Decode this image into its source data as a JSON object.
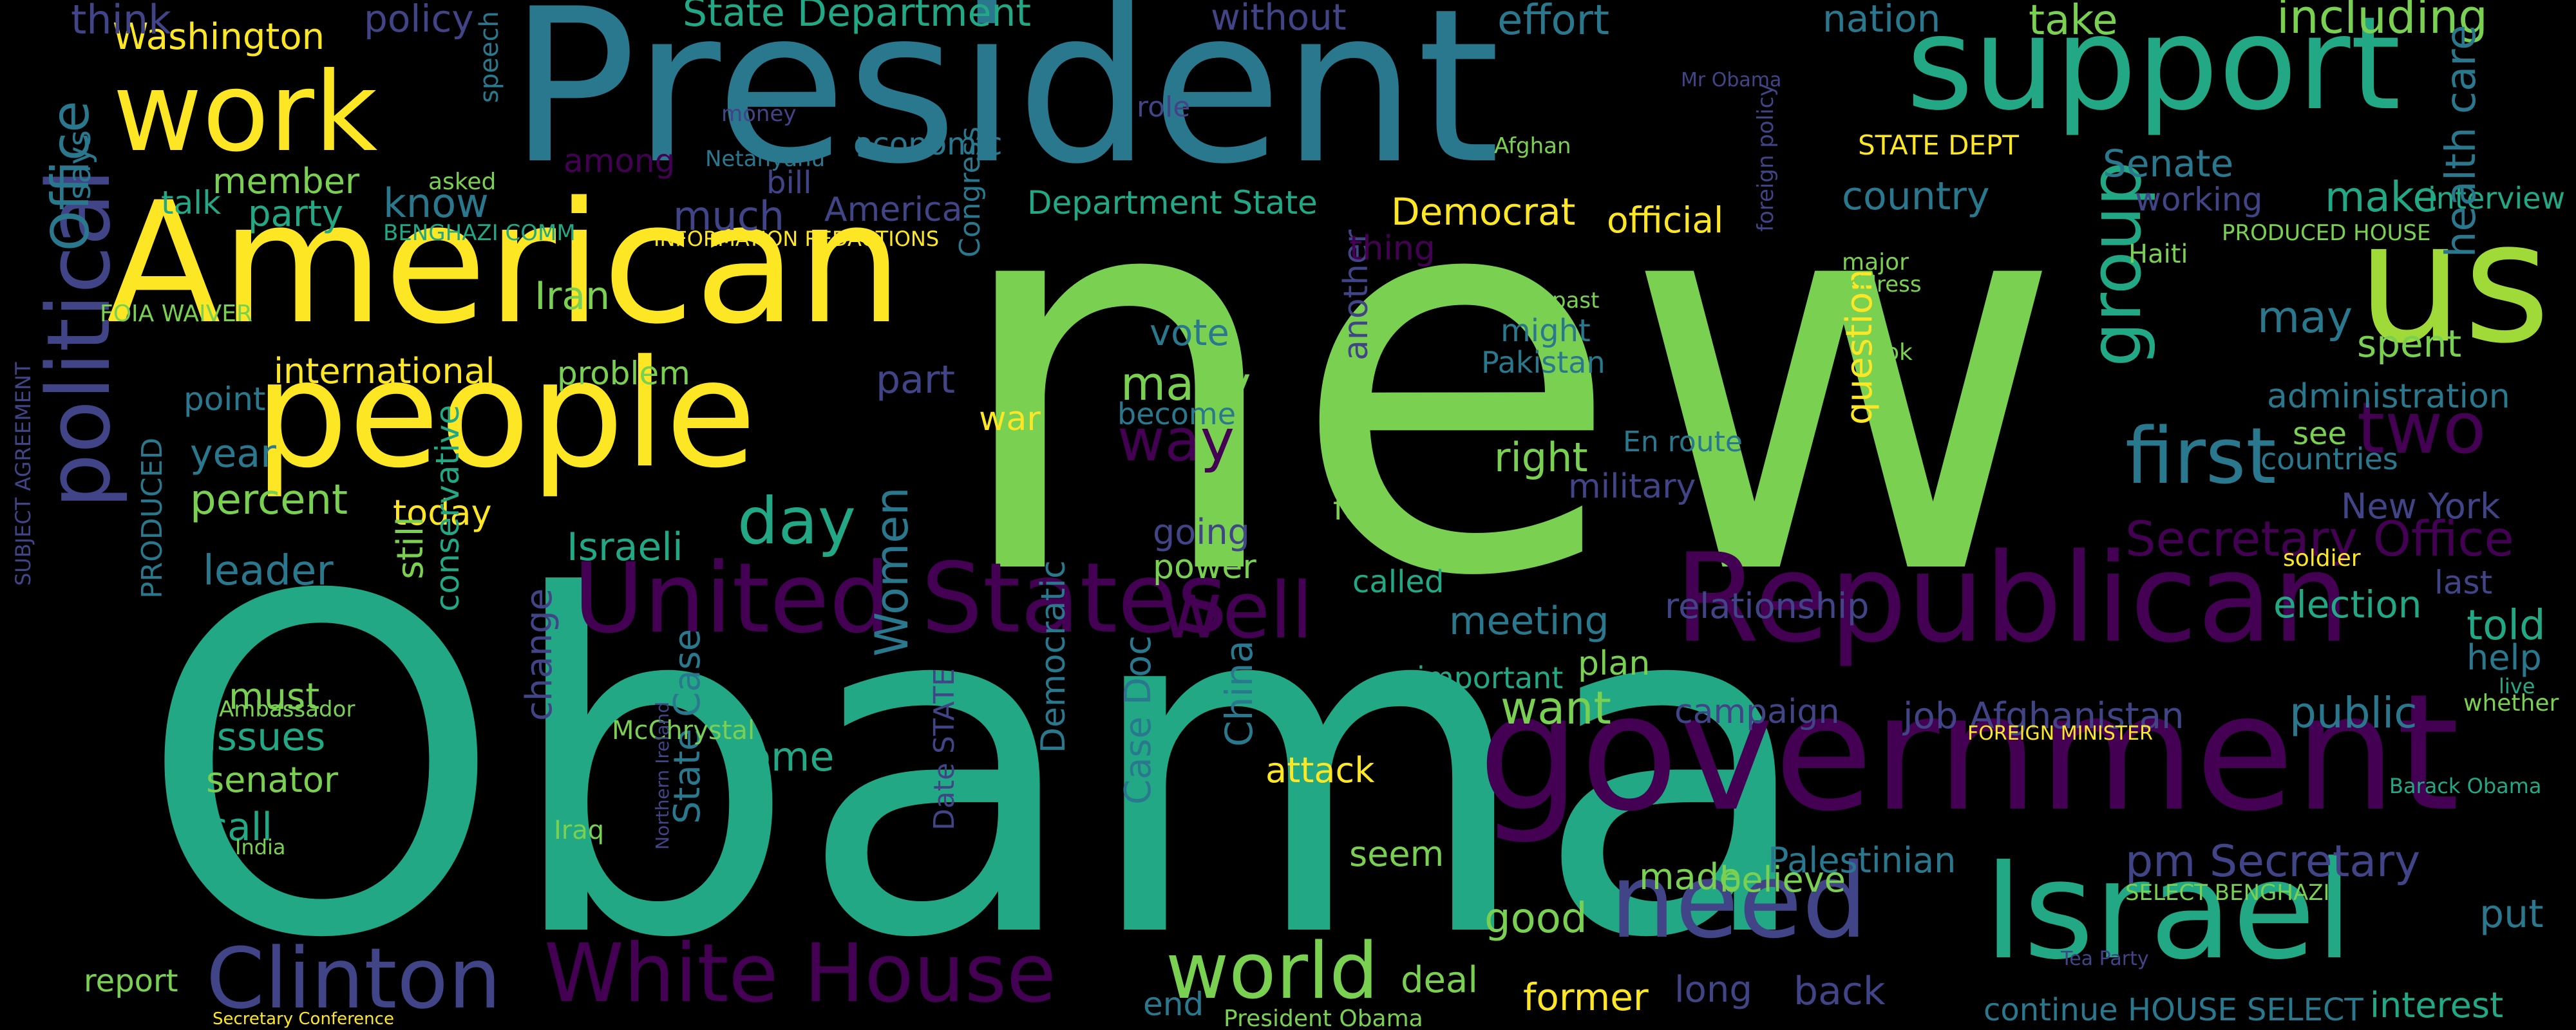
{
  "palette": {
    "background": "#000000",
    "yellow": "#fde725",
    "lime": "#7ad151",
    "green": "#22a884",
    "teal": "#2a788e",
    "blue": "#414487",
    "purple": "#440154"
  },
  "words": [
    {
      "text": "new",
      "color": "#7ad151"
    },
    {
      "text": "Obama",
      "color": "#22a884"
    },
    {
      "text": "President",
      "color": "#2a788e"
    },
    {
      "text": "American",
      "color": "#fde725"
    },
    {
      "text": "people",
      "color": "#fde725"
    },
    {
      "text": "government",
      "color": "#440154"
    },
    {
      "text": "support",
      "color": "#22a884"
    },
    {
      "text": "Israel",
      "color": "#22a884"
    },
    {
      "text": "Republican",
      "color": "#440154"
    },
    {
      "text": "United States",
      "color": "#440154"
    },
    {
      "text": "work",
      "color": "#fde725"
    },
    {
      "text": "us",
      "color": "#a0da39"
    },
    {
      "text": "political",
      "color": "#414487"
    },
    {
      "text": "need",
      "color": "#414487"
    },
    {
      "text": "White House",
      "color": "#440154"
    },
    {
      "text": "Clinton",
      "color": "#414487"
    },
    {
      "text": "first",
      "color": "#2a788e"
    },
    {
      "text": "group",
      "color": "#22a884"
    },
    {
      "text": "Office",
      "color": "#2a788e"
    },
    {
      "text": "well",
      "color": "#440154"
    },
    {
      "text": "way",
      "color": "#440154"
    },
    {
      "text": "world",
      "color": "#7ad151"
    },
    {
      "text": "two",
      "color": "#440154"
    },
    {
      "text": "Women",
      "color": "#2a788e"
    },
    {
      "text": "day",
      "color": "#22a884"
    },
    {
      "text": "Secretary Office",
      "color": "#440154"
    },
    {
      "text": "State Department",
      "color": "#22a884"
    },
    {
      "text": "Washington",
      "color": "#fde725"
    },
    {
      "text": "effort",
      "color": "#2a788e"
    },
    {
      "text": "including",
      "color": "#7ad151"
    },
    {
      "text": "nation",
      "color": "#2a788e"
    },
    {
      "text": "take",
      "color": "#7ad151"
    },
    {
      "text": "Democrat",
      "color": "#fde725"
    },
    {
      "text": "Department State",
      "color": "#22a884"
    },
    {
      "text": "America",
      "color": "#414487"
    },
    {
      "text": "official",
      "color": "#fde725"
    },
    {
      "text": "country",
      "color": "#2a788e"
    },
    {
      "text": "STATE DEPT",
      "color": "#fde725"
    },
    {
      "text": "Senate",
      "color": "#2a788e"
    },
    {
      "text": "working",
      "color": "#414487"
    },
    {
      "text": "make",
      "color": "#22a884"
    },
    {
      "text": "interview",
      "color": "#22a884"
    },
    {
      "text": "health care",
      "color": "#2a788e"
    },
    {
      "text": "may",
      "color": "#2a788e"
    },
    {
      "text": "spent",
      "color": "#7ad151"
    },
    {
      "text": "administration",
      "color": "#2a788e"
    },
    {
      "text": "see",
      "color": "#7ad151"
    },
    {
      "text": "countries",
      "color": "#2a788e"
    },
    {
      "text": "New York",
      "color": "#414487"
    },
    {
      "text": "election",
      "color": "#22a884"
    },
    {
      "text": "told",
      "color": "#22a884"
    },
    {
      "text": "help",
      "color": "#2a788e"
    },
    {
      "text": "last",
      "color": "#414487"
    },
    {
      "text": "public",
      "color": "#2a788e"
    },
    {
      "text": "put",
      "color": "#2a788e"
    },
    {
      "text": "interest",
      "color": "#22a884"
    },
    {
      "text": "continue HOUSE SELECT",
      "color": "#2a788e"
    },
    {
      "text": "Palestinian",
      "color": "#2a788e"
    },
    {
      "text": "pm Secretary",
      "color": "#414487"
    },
    {
      "text": "job Afghanistan",
      "color": "#414487"
    },
    {
      "text": "campaign",
      "color": "#414487"
    },
    {
      "text": "want",
      "color": "#7ad151"
    },
    {
      "text": "meeting",
      "color": "#2a788e"
    },
    {
      "text": "relationship",
      "color": "#414487"
    },
    {
      "text": "question",
      "color": "#fde725"
    },
    {
      "text": "think",
      "color": "#414487"
    },
    {
      "text": "policy",
      "color": "#414487"
    },
    {
      "text": "know",
      "color": "#2a788e"
    },
    {
      "text": "much",
      "color": "#414487"
    },
    {
      "text": "party",
      "color": "#22a884"
    },
    {
      "text": "member",
      "color": "#7ad151"
    },
    {
      "text": "talk",
      "color": "#22a884"
    },
    {
      "text": "says",
      "color": "#2a788e"
    },
    {
      "text": "Iran",
      "color": "#7ad151"
    },
    {
      "text": "international",
      "color": "#fde725"
    },
    {
      "text": "problem",
      "color": "#7ad151"
    },
    {
      "text": "point",
      "color": "#2a788e"
    },
    {
      "text": "year",
      "color": "#2a788e"
    },
    {
      "text": "percent",
      "color": "#7ad151"
    },
    {
      "text": "today",
      "color": "#fde725"
    },
    {
      "text": "leader",
      "color": "#2a788e"
    },
    {
      "text": "Israeli",
      "color": "#22a884"
    },
    {
      "text": "still",
      "color": "#7ad151"
    },
    {
      "text": "conservative",
      "color": "#22a884"
    },
    {
      "text": "must",
      "color": "#7ad151"
    },
    {
      "text": "issues",
      "color": "#22a884"
    },
    {
      "text": "senator",
      "color": "#7ad151"
    },
    {
      "text": "call",
      "color": "#22a884"
    },
    {
      "text": "change",
      "color": "#414487"
    },
    {
      "text": "come",
      "color": "#22a884"
    },
    {
      "text": "State Case",
      "color": "#2a788e"
    },
    {
      "text": "Date STATE",
      "color": "#414487"
    },
    {
      "text": "Democratic",
      "color": "#2a788e"
    },
    {
      "text": "Case Doc",
      "color": "#2a788e"
    },
    {
      "text": "China",
      "color": "#2a788e"
    },
    {
      "text": "attack",
      "color": "#fde725"
    },
    {
      "text": "seem",
      "color": "#7ad151"
    },
    {
      "text": "made",
      "color": "#7ad151"
    },
    {
      "text": "believe",
      "color": "#7ad151"
    },
    {
      "text": "good",
      "color": "#7ad151"
    },
    {
      "text": "former",
      "color": "#fde725"
    },
    {
      "text": "long",
      "color": "#414487"
    },
    {
      "text": "back",
      "color": "#414487"
    },
    {
      "text": "deal",
      "color": "#7ad151"
    },
    {
      "text": "end",
      "color": "#2a788e"
    },
    {
      "text": "many",
      "color": "#7ad151"
    },
    {
      "text": "part",
      "color": "#414487"
    },
    {
      "text": "war",
      "color": "#fde725"
    },
    {
      "text": "vote",
      "color": "#2a788e"
    },
    {
      "text": "become",
      "color": "#2a788e"
    },
    {
      "text": "going",
      "color": "#414487"
    },
    {
      "text": "power",
      "color": "#7ad151"
    },
    {
      "text": "called",
      "color": "#22a884"
    },
    {
      "text": "fact",
      "color": "#7ad151"
    },
    {
      "text": "right",
      "color": "#7ad151"
    },
    {
      "text": "might",
      "color": "#2a788e"
    },
    {
      "text": "Pakistan",
      "color": "#2a788e"
    },
    {
      "text": "military",
      "color": "#414487"
    },
    {
      "text": "En route",
      "color": "#2a788e"
    },
    {
      "text": "another",
      "color": "#414487"
    },
    {
      "text": "thing",
      "color": "#440154"
    },
    {
      "text": "important",
      "color": "#22a884"
    },
    {
      "text": "plan",
      "color": "#7ad151"
    },
    {
      "text": "economic",
      "color": "#2a788e"
    },
    {
      "text": "bill",
      "color": "#414487"
    },
    {
      "text": "among",
      "color": "#440154"
    },
    {
      "text": "INFORMATION REDACTIONS",
      "color": "#fde725"
    },
    {
      "text": "BENGHAZI COMM",
      "color": "#22a884"
    },
    {
      "text": "McChrystal",
      "color": "#7ad151"
    },
    {
      "text": "Congress",
      "color": "#2a788e"
    },
    {
      "text": "SELECT BENGHAZI",
      "color": "#7ad151"
    },
    {
      "text": "FOREIGN MINISTER",
      "color": "#fde725"
    },
    {
      "text": "foreign policy",
      "color": "#414487"
    },
    {
      "text": "Mr Obama",
      "color": "#414487"
    },
    {
      "text": "Afghan",
      "color": "#7ad151"
    },
    {
      "text": "without",
      "color": "#414487"
    },
    {
      "text": "role",
      "color": "#414487"
    },
    {
      "text": "Netanyahu",
      "color": "#2a788e"
    },
    {
      "text": "money",
      "color": "#414487"
    },
    {
      "text": "speech",
      "color": "#2a788e"
    },
    {
      "text": "asked",
      "color": "#7ad151"
    },
    {
      "text": "PRODUCED HOUSE",
      "color": "#7ad151"
    },
    {
      "text": "PRODUCED",
      "color": "#2a788e"
    },
    {
      "text": "SUBJECT AGREEMENT",
      "color": "#414487"
    },
    {
      "text": "FOIA WAIVER",
      "color": "#7ad151"
    },
    {
      "text": "report",
      "color": "#7ad151"
    },
    {
      "text": "President Obama",
      "color": "#7ad151"
    },
    {
      "text": "Secretary Conference",
      "color": "#fde725"
    },
    {
      "text": "whether",
      "color": "#7ad151"
    },
    {
      "text": "live",
      "color": "#22a884"
    },
    {
      "text": "soldier",
      "color": "#fde725"
    },
    {
      "text": "Haiti",
      "color": "#7ad151"
    },
    {
      "text": "look",
      "color": "#7ad151"
    },
    {
      "text": "major",
      "color": "#7ad151"
    },
    {
      "text": "address",
      "color": "#7ad151"
    },
    {
      "text": "past",
      "color": "#7ad151"
    },
    {
      "text": "Barack Obama",
      "color": "#22a884"
    },
    {
      "text": "Tea Party",
      "color": "#414487"
    },
    {
      "text": "Northern Ireland",
      "color": "#414487"
    },
    {
      "text": "Iraq",
      "color": "#7ad151"
    },
    {
      "text": "Ambassador",
      "color": "#7ad151"
    },
    {
      "text": "India",
      "color": "#7ad151"
    }
  ]
}
